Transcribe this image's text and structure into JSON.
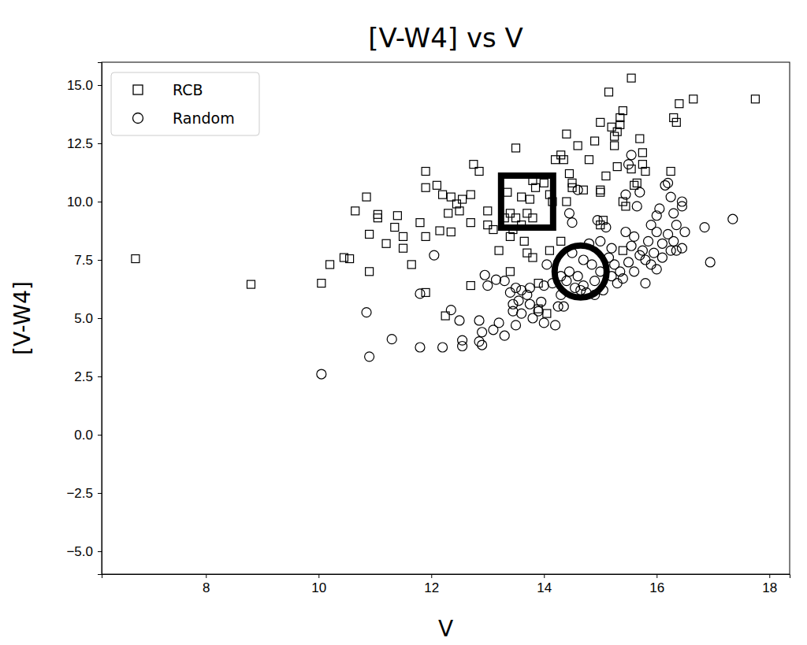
{
  "chart_data": {
    "type": "scatter",
    "title": "[V-W4] vs V",
    "x_label": "V",
    "y_label": "[V-W4]",
    "xlim": [
      6.15,
      18.36
    ],
    "ylim": [
      -5.98,
      15.98
    ],
    "xticks": [
      8,
      10,
      12,
      14,
      16,
      18
    ],
    "yticks": [
      {
        "value": -5,
        "label": "−5.0"
      },
      {
        "value": -2.5,
        "label": "−2.5"
      },
      {
        "value": 0,
        "label": "0.0"
      },
      {
        "value": 2.5,
        "label": "2.5"
      },
      {
        "value": 5,
        "label": "5.0"
      },
      {
        "value": 7.5,
        "label": "7.5"
      },
      {
        "value": 10,
        "label": "10.0"
      },
      {
        "value": 12.5,
        "label": "12.5"
      },
      {
        "value": 15,
        "label": "15.0"
      }
    ],
    "legend": "upper left",
    "grid": false,
    "series": [
      {
        "name": "RCB",
        "marker": "square",
        "color": "#000000",
        "center": {
          "x": 13.7,
          "y": 10.0
        },
        "x": [
          6.75,
          8.8,
          10.05,
          10.2,
          10.45,
          10.55,
          10.65,
          10.85,
          10.9,
          10.9,
          11.05,
          11.05,
          11.2,
          11.35,
          11.4,
          11.5,
          11.5,
          11.65,
          11.8,
          11.9,
          11.9,
          11.9,
          11.9,
          12.1,
          12.15,
          12.2,
          12.3,
          12.35,
          12.35,
          12.25,
          12.45,
          12.5,
          12.55,
          12.7,
          12.75,
          12.85,
          12.7,
          12.7,
          13.0,
          13.0,
          13.1,
          13.2,
          13.3,
          13.35,
          13.4,
          13.4,
          13.4,
          13.5,
          13.5,
          13.6,
          13.6,
          13.65,
          13.7,
          13.75,
          13.8,
          13.8,
          13.85,
          13.8,
          13.9,
          14.0,
          14.1,
          14.15,
          14.2,
          14.3,
          14.35,
          14.4,
          14.45,
          14.5,
          14.6,
          14.5,
          14.7,
          14.8,
          14.9,
          15.0,
          15.0,
          15.0,
          15.05,
          15.1,
          15.15,
          15.2,
          15.25,
          15.25,
          15.3,
          15.3,
          15.35,
          15.35,
          15.4,
          15.4,
          15.45,
          15.55,
          15.55,
          15.6,
          15.7,
          15.75,
          15.75,
          15.8,
          15.65,
          16.25,
          16.3,
          16.35,
          16.4,
          16.65,
          17.75,
          14.1,
          14.3,
          13.9,
          14.05,
          15.0,
          15.4,
          14.4,
          13.7,
          13.45
        ],
        "y": [
          7.55,
          6.45,
          6.5,
          7.3,
          7.6,
          7.55,
          9.6,
          10.2,
          8.6,
          7.0,
          9.3,
          9.45,
          8.2,
          8.9,
          9.4,
          8.5,
          8.0,
          7.3,
          9.1,
          11.3,
          10.6,
          8.5,
          6.1,
          10.7,
          8.75,
          10.3,
          9.5,
          10.2,
          8.7,
          5.1,
          9.9,
          9.6,
          10.1,
          10.3,
          11.6,
          11.3,
          9.1,
          6.4,
          9.6,
          9.0,
          8.8,
          7.9,
          9.3,
          10.4,
          9.5,
          8.5,
          7.0,
          12.3,
          9.3,
          9.0,
          10.2,
          8.3,
          7.8,
          10.1,
          9.3,
          10.9,
          10.6,
          7.6,
          6.5,
          10.8,
          10.3,
          10.0,
          11.8,
          12.0,
          11.8,
          12.9,
          11.2,
          10.8,
          12.4,
          10.6,
          10.5,
          11.8,
          12.6,
          13.4,
          10.5,
          10.4,
          9.2,
          11.1,
          14.7,
          13.2,
          12.8,
          12.4,
          13.0,
          11.5,
          13.3,
          13.6,
          13.9,
          10.0,
          9.8,
          15.3,
          11.4,
          10.7,
          12.7,
          12.1,
          11.6,
          11.3,
          10.8,
          11.3,
          13.6,
          13.4,
          14.2,
          14.4,
          14.4,
          7.9,
          8.3,
          5.4,
          5.2,
          9.0,
          7.9,
          10.0,
          9.5,
          8.8
        ]
      },
      {
        "name": "Random",
        "marker": "circle",
        "color": "#000000",
        "center": {
          "x": 14.65,
          "y": 7.0
        },
        "x": [
          10.05,
          10.85,
          10.9,
          11.3,
          11.8,
          11.8,
          12.05,
          12.2,
          12.35,
          12.5,
          12.55,
          12.55,
          12.85,
          12.85,
          12.9,
          12.9,
          12.95,
          13.0,
          13.1,
          13.15,
          13.2,
          13.3,
          13.3,
          13.4,
          13.45,
          13.45,
          13.5,
          13.5,
          13.55,
          13.6,
          13.6,
          13.7,
          13.75,
          13.75,
          13.8,
          13.9,
          13.95,
          14.0,
          14.0,
          14.05,
          14.2,
          14.25,
          14.3,
          14.35,
          14.4,
          14.45,
          14.5,
          14.5,
          14.55,
          14.6,
          14.7,
          14.75,
          14.8,
          14.85,
          14.9,
          14.95,
          15.0,
          15.0,
          15.05,
          15.1,
          15.15,
          15.2,
          15.25,
          15.3,
          15.35,
          15.4,
          15.45,
          15.45,
          15.5,
          15.5,
          15.55,
          15.55,
          15.6,
          15.6,
          15.65,
          15.7,
          15.75,
          15.8,
          15.8,
          15.85,
          15.9,
          15.9,
          15.95,
          16.0,
          16.0,
          16.0,
          16.05,
          16.1,
          16.1,
          16.15,
          16.2,
          16.2,
          16.25,
          16.25,
          16.3,
          16.3,
          16.35,
          16.35,
          16.45,
          16.45,
          16.5,
          16.45,
          16.85,
          16.95,
          17.35,
          14.6,
          14.45,
          14.15,
          14.3,
          14.7,
          15.2,
          15.7,
          14.9,
          14.65
        ],
        "y": [
          2.6,
          5.25,
          3.35,
          4.1,
          3.75,
          6.05,
          7.7,
          3.75,
          5.35,
          4.9,
          3.8,
          4.05,
          4.9,
          4.0,
          4.4,
          3.85,
          6.85,
          6.4,
          4.5,
          6.65,
          4.8,
          4.25,
          6.6,
          6.1,
          5.6,
          5.3,
          4.7,
          6.3,
          5.75,
          6.2,
          5.2,
          6.0,
          5.6,
          6.3,
          5.0,
          5.3,
          5.7,
          4.8,
          6.4,
          7.3,
          4.7,
          5.5,
          6.0,
          5.5,
          6.6,
          7.0,
          7.8,
          9.1,
          6.3,
          6.8,
          7.5,
          6.1,
          8.2,
          7.3,
          6.6,
          9.2,
          7.0,
          8.3,
          6.2,
          8.9,
          7.6,
          6.8,
          7.3,
          6.5,
          7.0,
          6.7,
          8.7,
          10.3,
          11.6,
          7.4,
          12.0,
          8.1,
          8.5,
          7.0,
          9.8,
          7.7,
          7.9,
          7.5,
          6.5,
          8.3,
          9.0,
          7.3,
          7.8,
          8.7,
          9.4,
          7.1,
          9.7,
          8.2,
          7.6,
          10.7,
          10.8,
          8.6,
          10.2,
          7.9,
          9.5,
          8.3,
          9.0,
          7.9,
          9.8,
          10.0,
          8.7,
          8.0,
          8.9,
          7.4,
          9.25,
          10.5,
          9.5,
          6.5,
          6.8,
          6.4,
          8.0,
          10.4,
          6.0,
          6.2
        ]
      }
    ]
  }
}
